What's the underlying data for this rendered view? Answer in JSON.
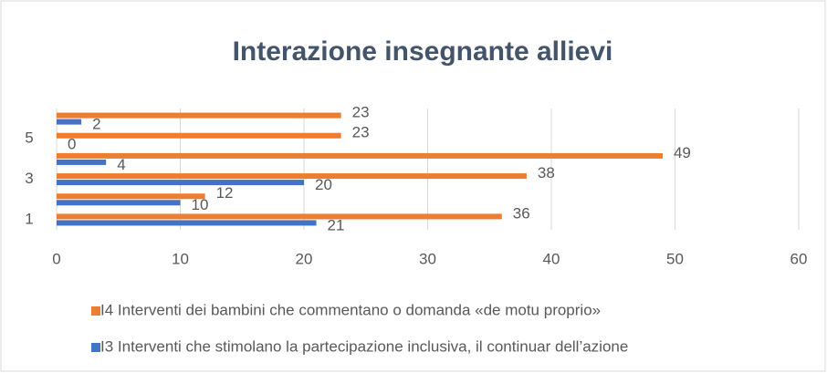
{
  "chart_data": {
    "type": "bar",
    "orientation": "horizontal",
    "title": "Interazione insegnante allievi",
    "categories": [
      "1",
      null,
      "3",
      null,
      "5",
      null
    ],
    "series": [
      {
        "name": "I4 Interventi dei bambini che commentano o domanda «de motu proprio»",
        "color": "#ed7d31",
        "values": [
          36,
          12,
          38,
          49,
          23,
          23
        ]
      },
      {
        "name": "I3 Interventi che stimolano la partecipazione inclusiva, il continuar dell’azione",
        "color": "#4472c4",
        "values": [
          21,
          10,
          20,
          4,
          0,
          2
        ]
      }
    ],
    "xlim": [
      0,
      60
    ],
    "xticks": [
      0,
      10,
      20,
      30,
      40,
      50,
      60
    ],
    "grid": true
  }
}
